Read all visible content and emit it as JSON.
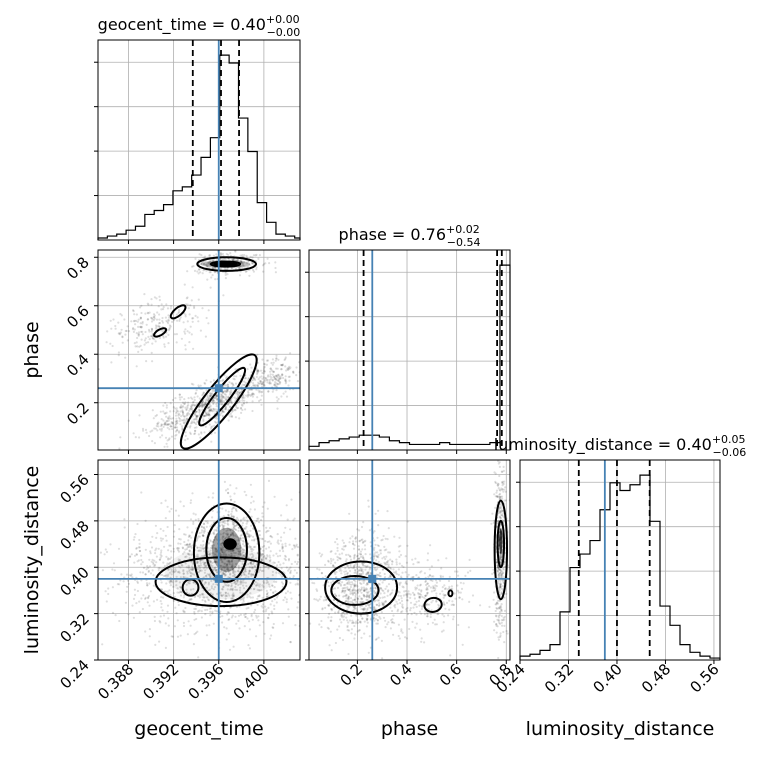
{
  "chart_data": {
    "type": "corner",
    "parameters": [
      "geocent_time",
      "phase",
      "luminosity_distance"
    ],
    "truths": {
      "geocent_time": 0.396,
      "phase": 0.26,
      "luminosity_distance": 0.38
    },
    "colors": {
      "truth": "#4682b4",
      "contour": "#000000",
      "samples": "#808080",
      "grid": "#b0b0b0"
    },
    "grid": true,
    "diagonal": [
      {
        "param": "geocent_time",
        "title": {
          "prefix": "geocent_time = ",
          "median": "0.40",
          "upper": "+0.00",
          "lower": "−0.00"
        },
        "range": [
          0.3853,
          0.4032
        ],
        "quantiles": [
          0.3937,
          0.3962,
          0.3978
        ],
        "hist": {
          "edges": [
            0.3853,
            0.38613,
            0.38696,
            0.38779,
            0.38862,
            0.38945,
            0.39028,
            0.39111,
            0.39194,
            0.39277,
            0.3936,
            0.39443,
            0.39526,
            0.39609,
            0.39692,
            0.39775,
            0.39858,
            0.39941,
            0.40024,
            0.40107,
            0.4019,
            0.40273,
            0.4032
          ],
          "counts": [
            1,
            2,
            3,
            5,
            7,
            13,
            15,
            18,
            25,
            27,
            33,
            42,
            52,
            94,
            90,
            62,
            45,
            19,
            9,
            3,
            2,
            1
          ]
        },
        "ticks": [
          "0.388",
          "0.392",
          "0.396",
          "0.400"
        ],
        "tick_values": [
          0.388,
          0.392,
          0.396,
          0.4
        ]
      },
      {
        "param": "phase",
        "title": {
          "prefix": "phase = ",
          "median": "0.76",
          "upper": "+0.02",
          "lower": "−0.54"
        },
        "range": [
          0.005,
          0.815
        ],
        "quantiles": [
          0.225,
          0.763,
          0.782
        ],
        "hist": {
          "edges": [
            0.005,
            0.0455,
            0.086,
            0.1265,
            0.167,
            0.2075,
            0.248,
            0.2885,
            0.329,
            0.3695,
            0.41,
            0.4505,
            0.491,
            0.5315,
            0.572,
            0.6125,
            0.653,
            0.6935,
            0.734,
            0.7745,
            0.815
          ],
          "counts": [
            2,
            4,
            5,
            6,
            7,
            8,
            8,
            7,
            5,
            4,
            3,
            3,
            3,
            4,
            3,
            3,
            3,
            3,
            4,
            100
          ]
        },
        "ticks": [
          "0.2",
          "0.4",
          "0.6",
          "0.8"
        ],
        "tick_values": [
          0.2,
          0.4,
          0.6,
          0.8
        ]
      },
      {
        "param": "luminosity_distance",
        "title": {
          "prefix": "luminosity_distance = ",
          "median": "0.40",
          "upper": "+0.05",
          "lower": "−0.06"
        },
        "range": [
          0.24,
          0.57
        ],
        "quantiles": [
          0.337,
          0.4,
          0.454
        ],
        "hist": {
          "edges": [
            0.24,
            0.2565,
            0.273,
            0.2895,
            0.306,
            0.3225,
            0.339,
            0.3555,
            0.372,
            0.3885,
            0.405,
            0.4215,
            0.438,
            0.4545,
            0.471,
            0.4875,
            0.504,
            0.5205,
            0.537,
            0.5535,
            0.57
          ],
          "counts": [
            2,
            3,
            5,
            8,
            25,
            48,
            55,
            62,
            78,
            92,
            88,
            91,
            96,
            72,
            28,
            18,
            8,
            4,
            2,
            1
          ]
        },
        "ticks": [
          "0.24",
          "0.32",
          "0.40",
          "0.48",
          "0.56"
        ],
        "tick_values": [
          0.24,
          0.32,
          0.4,
          0.48,
          0.56
        ]
      }
    ],
    "offdiagonal": [
      {
        "x": "geocent_time",
        "y": "phase"
      },
      {
        "x": "geocent_time",
        "y": "luminosity_distance"
      },
      {
        "x": "phase",
        "y": "luminosity_distance"
      }
    ],
    "y_axes": {
      "phase": {
        "label": "phase",
        "range": [
          0.005,
          0.83
        ],
        "ticks": [
          "0.2",
          "0.4",
          "0.6",
          "0.8"
        ],
        "tick_values": [
          0.2,
          0.4,
          0.6,
          0.8
        ]
      },
      "luminosity_distance": {
        "label": "luminosity_distance",
        "range": [
          0.24,
          0.585
        ],
        "ticks": [
          "0.24",
          "0.32",
          "0.40",
          "0.48",
          "0.56"
        ],
        "tick_values": [
          0.24,
          0.32,
          0.4,
          0.48,
          0.56
        ]
      }
    },
    "x_labels": [
      "geocent_time",
      "phase",
      "luminosity_distance"
    ]
  }
}
